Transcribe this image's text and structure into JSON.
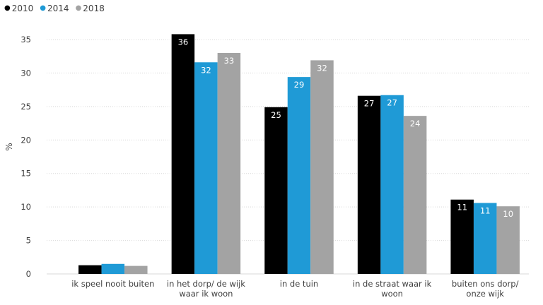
{
  "chart_data": {
    "type": "bar",
    "title": "",
    "xlabel": "",
    "ylabel": "%",
    "ylim": [
      0,
      35
    ],
    "yticks": [
      0,
      5,
      10,
      15,
      20,
      25,
      30,
      35
    ],
    "grid": true,
    "legend_position": "top-left",
    "categories": [
      [
        "ik speel nooit buiten"
      ],
      [
        "in het dorp/ de wijk",
        "waar ik woon"
      ],
      [
        "in de tuin"
      ],
      [
        "in de straat waar ik",
        "woon"
      ],
      [
        "buiten ons dorp/",
        "onze wijk"
      ]
    ],
    "series": [
      {
        "name": "2010",
        "color": "#000000",
        "label_color": "#ffffff",
        "values": [
          1.3,
          35.8,
          24.9,
          26.6,
          11.1
        ],
        "labels": [
          "",
          "36",
          "25",
          "27",
          "11"
        ]
      },
      {
        "name": "2014",
        "color": "#1f9ad6",
        "label_color": "#ffffff",
        "values": [
          1.5,
          31.6,
          29.4,
          26.7,
          10.6
        ],
        "labels": [
          "",
          "32",
          "29",
          "27",
          "11"
        ]
      },
      {
        "name": "2018",
        "color": "#a3a3a3",
        "label_color": "#ffffff",
        "values": [
          1.2,
          33.0,
          31.9,
          23.6,
          10.1
        ],
        "labels": [
          "",
          "33",
          "32",
          "24",
          "10"
        ]
      }
    ]
  }
}
